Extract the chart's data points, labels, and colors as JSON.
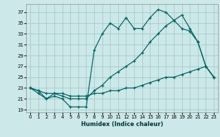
{
  "xlabel": "Humidex (Indice chaleur)",
  "background_color": "#cce8e8",
  "grid_color": "#aacccc",
  "line_color": "#006060",
  "xlim": [
    -0.5,
    23.5
  ],
  "ylim": [
    18.5,
    38.5
  ],
  "xticks": [
    0,
    1,
    2,
    3,
    4,
    5,
    6,
    7,
    8,
    9,
    10,
    11,
    12,
    13,
    14,
    15,
    16,
    17,
    18,
    19,
    20,
    21,
    22,
    23
  ],
  "yticks": [
    19,
    21,
    23,
    25,
    27,
    29,
    31,
    33,
    35,
    37
  ],
  "series1_x": [
    0,
    1,
    2,
    3,
    4,
    5,
    6,
    7,
    8,
    9,
    10,
    11,
    12,
    13,
    14,
    15,
    16,
    17,
    18,
    19,
    20,
    21,
    22,
    23
  ],
  "series1_y": [
    23,
    22,
    21,
    21.5,
    21,
    19.5,
    19.5,
    19.5,
    30,
    33,
    35,
    34,
    36,
    34,
    34,
    36,
    37.5,
    37,
    35.5,
    34,
    33.5,
    31.5,
    27,
    25
  ],
  "series2_x": [
    0,
    1,
    2,
    3,
    4,
    5,
    6,
    7,
    8,
    9,
    10,
    11,
    12,
    13,
    14,
    15,
    16,
    17,
    18,
    19,
    20,
    21,
    22,
    23
  ],
  "series2_y": [
    23,
    22.5,
    21,
    22,
    21.5,
    21,
    21,
    21,
    22.5,
    23.5,
    25,
    26,
    27,
    28,
    29.5,
    31.5,
    33,
    34.5,
    35.5,
    36.5,
    34,
    31.5,
    27,
    25
  ],
  "series3_x": [
    0,
    1,
    2,
    3,
    4,
    5,
    6,
    7,
    8,
    9,
    10,
    11,
    12,
    13,
    14,
    15,
    16,
    17,
    18,
    19,
    20,
    21,
    22,
    23
  ],
  "series3_y": [
    23,
    22.5,
    22,
    22,
    22,
    21.5,
    21.5,
    21.5,
    22,
    22,
    22.5,
    22.5,
    23,
    23,
    23.5,
    24,
    24.5,
    25,
    25,
    25.5,
    26,
    26.5,
    27,
    25
  ]
}
